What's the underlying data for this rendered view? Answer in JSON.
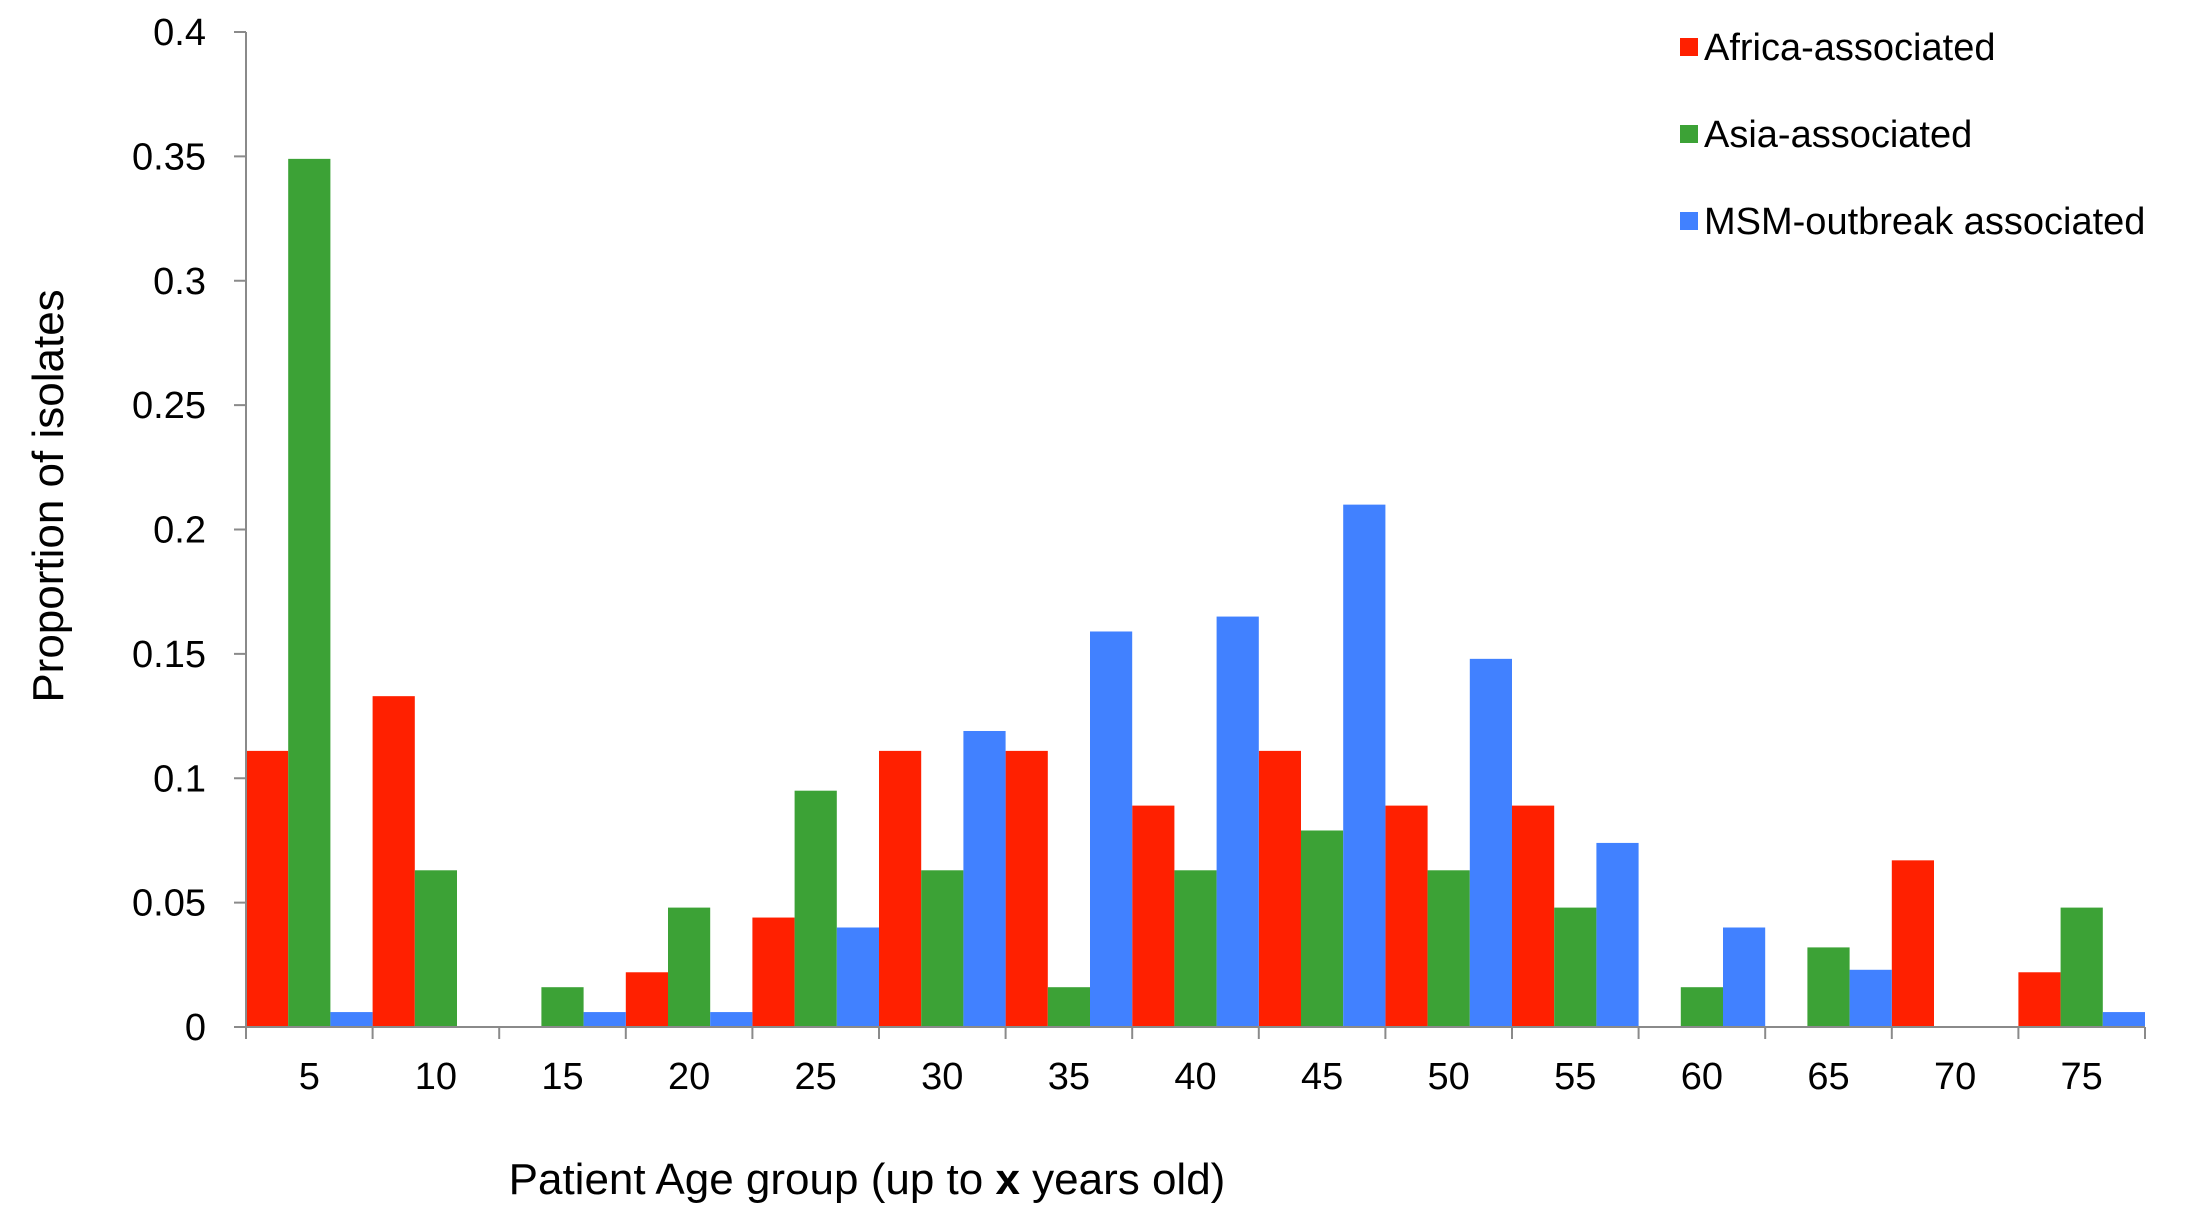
{
  "chart_data": {
    "type": "bar",
    "xlabel_parts": [
      "Patient Age group (up to ",
      "x",
      " years old)"
    ],
    "ylabel": "Proportion of isolates",
    "ylim": [
      0,
      0.4
    ],
    "yticks": [
      "0",
      "0.05",
      "0.1",
      "0.15",
      "0.2",
      "0.25",
      "0.3",
      "0.35",
      "0.4"
    ],
    "categories": [
      "5",
      "10",
      "15",
      "20",
      "25",
      "30",
      "35",
      "40",
      "45",
      "50",
      "55",
      "60",
      "65",
      "70",
      "75"
    ],
    "legend_position": "top-right",
    "series": [
      {
        "name": "Africa-associated",
        "color": "#ff2000",
        "values": [
          0.111,
          0.133,
          0,
          0.022,
          0.044,
          0.111,
          0.111,
          0.089,
          0.111,
          0.089,
          0.089,
          0,
          0,
          0.067,
          0.022
        ]
      },
      {
        "name": "Asia-associated",
        "color": "#3ca236",
        "values": [
          0.349,
          0.063,
          0.016,
          0.048,
          0.095,
          0.063,
          0.016,
          0.063,
          0.079,
          0.063,
          0.048,
          0.016,
          0.032,
          0,
          0.048
        ]
      },
      {
        "name": "MSM-outbreak associated",
        "color": "#4181ff",
        "values": [
          0.006,
          0,
          0.006,
          0.006,
          0.04,
          0.119,
          0.159,
          0.165,
          0.21,
          0.148,
          0.074,
          0.04,
          0.023,
          0,
          0.006
        ]
      }
    ]
  }
}
